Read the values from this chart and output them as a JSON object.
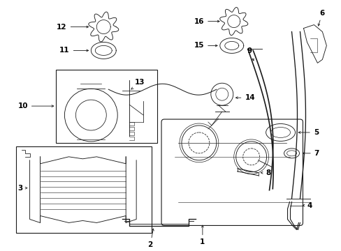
{
  "background_color": "#ffffff",
  "line_color": "#1a1a1a",
  "text_color": "#000000",
  "fig_width": 4.89,
  "fig_height": 3.6,
  "dpi": 100,
  "label_fontsize": 7.5,
  "label_arrow_lw": 0.6,
  "label_arrow_ms": 5
}
